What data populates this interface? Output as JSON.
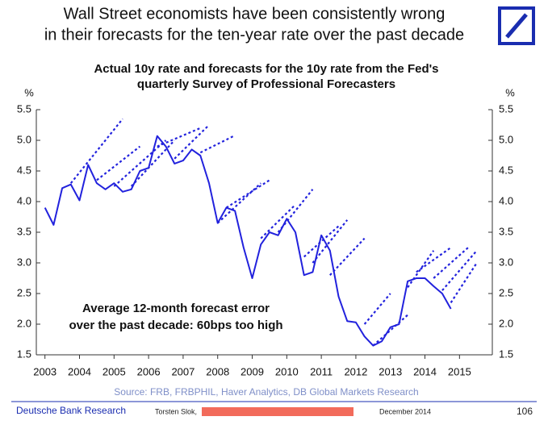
{
  "chart_data": {
    "type": "line",
    "title": [
      "Wall Street economists have been consistently wrong",
      "in their forecasts for the ten-year rate over the past decade"
    ],
    "subtitle": [
      "Actual 10y rate and forecasts for the 10y rate from the Fed's",
      "quarterly Survey of Professional Forecasters"
    ],
    "y_label": "%",
    "y2_label": "%",
    "annotation": [
      "Average 12-month forecast error",
      "over the past decade: 60bps too high"
    ],
    "source": "Source: FRB, FRBPHIL, Haver Analytics, DB Global Markets Research",
    "color": "#2222dd",
    "xlim": [
      2002.75,
      2015.95
    ],
    "xticks": [
      2003,
      2004,
      2005,
      2006,
      2007,
      2008,
      2009,
      2010,
      2011,
      2012,
      2013,
      2014,
      2015
    ],
    "ylim": [
      1.5,
      5.5
    ],
    "yticks": [
      5.5,
      {
        "value": 5,
        "label": "5.0"
      },
      4.5,
      {
        "value": 4,
        "label": "4.0"
      },
      3.5,
      {
        "value": 3,
        "label": "3.0"
      },
      2.5,
      {
        "value": 2,
        "label": "2.0"
      },
      1.5
    ],
    "y2lim": [
      1.5,
      5.5
    ],
    "y2ticks": [
      5.5,
      {
        "value": 5,
        "label": "5.0"
      },
      4.5,
      {
        "value": 4,
        "label": "4.0"
      },
      3.5,
      {
        "value": 3,
        "label": "3.0"
      },
      2.5,
      {
        "value": 2,
        "label": "2.0"
      },
      1.5
    ],
    "series": [
      {
        "style": "solid",
        "x": [
          2003,
          2003.25,
          2003.5,
          2003.75,
          2004,
          2004.25,
          2004.5,
          2004.75,
          2005,
          2005.25,
          2005.5,
          2005.75,
          2006,
          2006.25,
          2006.5,
          2006.75,
          2007,
          2007.25,
          2007.5,
          2007.75,
          2008,
          2008.25,
          2008.5,
          2008.75,
          2009,
          2009.25,
          2009.5,
          2009.75,
          2010,
          2010.25,
          2010.5,
          2010.75,
          2011,
          2011.25,
          2011.5,
          2011.75,
          2012,
          2012.25,
          2012.5,
          2012.75,
          2013,
          2013.25,
          2013.5,
          2013.75,
          2014,
          2014.25,
          2014.5,
          2014.75
        ],
        "values": [
          3.9,
          3.62,
          4.22,
          4.28,
          4.02,
          4.6,
          4.3,
          4.2,
          4.3,
          4.16,
          4.2,
          4.5,
          4.55,
          5.07,
          4.9,
          4.62,
          4.67,
          4.85,
          4.75,
          4.3,
          3.65,
          3.9,
          3.85,
          3.25,
          2.75,
          3.3,
          3.5,
          3.45,
          3.72,
          3.5,
          2.8,
          2.85,
          3.45,
          3.2,
          2.45,
          2.05,
          2.03,
          1.8,
          1.65,
          1.72,
          1.95,
          2.0,
          2.7,
          2.75,
          2.75,
          2.62,
          2.5,
          2.25
        ]
      },
      {
        "style": "dotted",
        "x": [
          2003.75,
          2005.25
        ],
        "values": [
          4.3,
          5.35
        ]
      },
      {
        "style": "dotted",
        "x": [
          2004.5,
          2005.75
        ],
        "values": [
          4.35,
          4.9
        ]
      },
      {
        "style": "dotted",
        "x": [
          2005.0,
          2006.5
        ],
        "values": [
          4.25,
          5.0
        ]
      },
      {
        "style": "dotted",
        "x": [
          2005.5,
          2006.75
        ],
        "values": [
          4.25,
          5.0
        ]
      },
      {
        "style": "dotted",
        "x": [
          2006.25,
          2007.5
        ],
        "values": [
          4.9,
          5.2
        ]
      },
      {
        "style": "dotted",
        "x": [
          2006.75,
          2007.75
        ],
        "values": [
          4.7,
          5.25
        ]
      },
      {
        "style": "dotted",
        "x": [
          2007.5,
          2008.5
        ],
        "values": [
          4.8,
          5.08
        ]
      },
      {
        "style": "dotted",
        "x": [
          2008.0,
          2009.25
        ],
        "values": [
          3.65,
          4.3
        ]
      },
      {
        "style": "dotted",
        "x": [
          2008.25,
          2009.5
        ],
        "values": [
          3.9,
          4.35
        ]
      },
      {
        "style": "dotted",
        "x": [
          2009.25,
          2010.25
        ],
        "values": [
          3.4,
          3.95
        ]
      },
      {
        "style": "dotted",
        "x": [
          2009.75,
          2010.75
        ],
        "values": [
          3.5,
          4.2
        ]
      },
      {
        "style": "dotted",
        "x": [
          2010.5,
          2011.5
        ],
        "values": [
          3.1,
          3.6
        ]
      },
      {
        "style": "dotted",
        "x": [
          2010.75,
          2011.75
        ],
        "values": [
          3.0,
          3.7
        ]
      },
      {
        "style": "dotted",
        "x": [
          2011.25,
          2012.25
        ],
        "values": [
          2.8,
          3.4
        ]
      },
      {
        "style": "dotted",
        "x": [
          2012.25,
          2013.0
        ],
        "values": [
          2.0,
          2.5
        ]
      },
      {
        "style": "dotted",
        "x": [
          2012.5,
          2013.5
        ],
        "values": [
          1.65,
          2.15
        ]
      },
      {
        "style": "dotted",
        "x": [
          2013.5,
          2014.25
        ],
        "values": [
          2.6,
          3.2
        ]
      },
      {
        "style": "dotted",
        "x": [
          2013.75,
          2014.75
        ],
        "values": [
          2.85,
          3.25
        ]
      },
      {
        "style": "dotted",
        "x": [
          2014.25,
          2015.25
        ],
        "values": [
          2.75,
          3.25
        ]
      },
      {
        "style": "dotted",
        "x": [
          2014.5,
          2015.5
        ],
        "values": [
          2.55,
          3.2
        ]
      },
      {
        "style": "dotted",
        "x": [
          2014.75,
          2015.5
        ],
        "values": [
          2.35,
          3.0
        ]
      }
    ]
  },
  "footer": {
    "brand": "Deutsche Bank Research",
    "author": "Torsten Slok,",
    "date": "December 2014",
    "page": "106"
  }
}
